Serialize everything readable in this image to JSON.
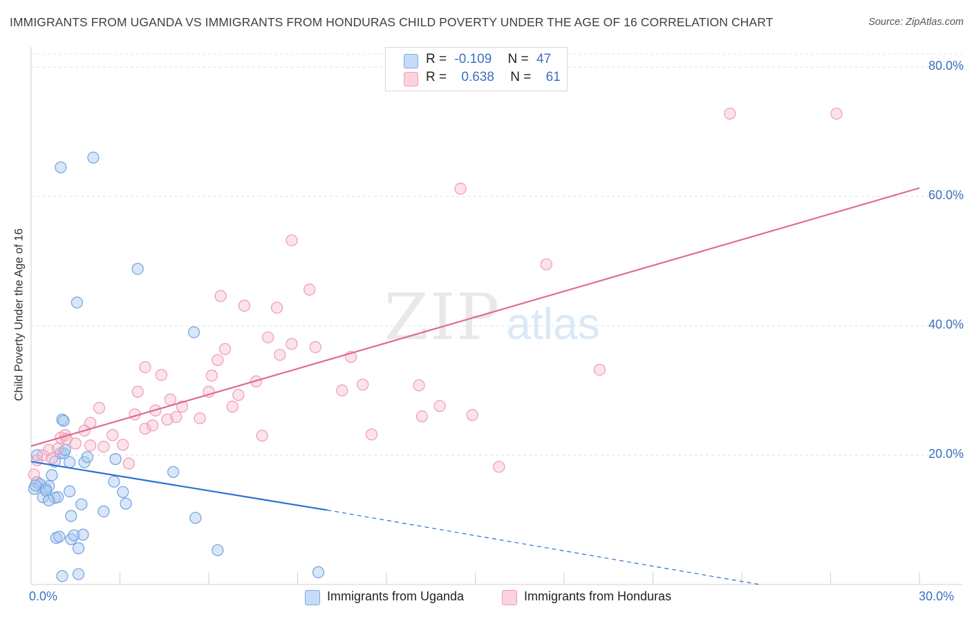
{
  "title": "IMMIGRANTS FROM UGANDA VS IMMIGRANTS FROM HONDURAS CHILD POVERTY UNDER THE AGE OF 16 CORRELATION CHART",
  "source": "Source: ZipAtlas.com",
  "watermark": {
    "zip": "ZIP",
    "atlas": "atlas"
  },
  "legend": {
    "rows": [
      {
        "r_label": "R =",
        "r_value": "-0.109",
        "n_label": "N =",
        "n_value": "47",
        "color": "#a8c8f0"
      },
      {
        "r_label": "R =",
        "r_value": "0.638",
        "n_label": "N =",
        "n_value": "61",
        "color": "#f7b8cb"
      }
    ]
  },
  "bottom_legend": [
    {
      "label": "Immigrants from Uganda",
      "color": "#a8c8f0"
    },
    {
      "label": "Immigrants from Honduras",
      "color": "#f7b8cb"
    }
  ],
  "chart_data": {
    "type": "scatter",
    "title": "IMMIGRANTS FROM UGANDA VS IMMIGRANTS FROM HONDURAS CHILD POVERTY UNDER THE AGE OF 16 CORRELATION CHART",
    "xlabel": "",
    "ylabel": "Child Poverty Under the Age of 16",
    "xlim": [
      0,
      30
    ],
    "ylim": [
      0,
      80
    ],
    "x_tick_labels": [
      "0.0%",
      "30.0%"
    ],
    "y_tick_values": [
      20,
      40,
      60,
      80
    ],
    "y_tick_labels": [
      "20.0%",
      "40.0%",
      "60.0%",
      "80.0%"
    ],
    "grid": true,
    "legend_position": "top-center",
    "series": [
      {
        "name": "Immigrants from Uganda",
        "color": "#7aaae6",
        "points": [
          [
            0.2,
            15.8
          ],
          [
            0.4,
            13.5
          ],
          [
            0.5,
            14.8
          ],
          [
            0.6,
            15.2
          ],
          [
            0.7,
            16.9
          ],
          [
            0.8,
            13.4
          ],
          [
            0.8,
            19.0
          ],
          [
            0.9,
            13.5
          ],
          [
            1.0,
            20.3
          ],
          [
            1.1,
            20.3
          ],
          [
            0.2,
            20.0
          ],
          [
            0.3,
            15.5
          ],
          [
            0.5,
            14.5
          ],
          [
            0.85,
            7.2
          ],
          [
            0.95,
            7.4
          ],
          [
            1.0,
            64.5
          ],
          [
            1.05,
            25.5
          ],
          [
            1.1,
            25.3
          ],
          [
            1.05,
            1.3
          ],
          [
            1.15,
            20.8
          ],
          [
            1.3,
            14.4
          ],
          [
            1.3,
            18.9
          ],
          [
            1.35,
            10.6
          ],
          [
            1.35,
            7.0
          ],
          [
            1.45,
            7.6
          ],
          [
            1.55,
            43.6
          ],
          [
            1.6,
            1.6
          ],
          [
            1.6,
            5.6
          ],
          [
            1.7,
            12.4
          ],
          [
            1.75,
            7.7
          ],
          [
            1.8,
            18.9
          ],
          [
            1.9,
            19.7
          ],
          [
            2.1,
            66.0
          ],
          [
            2.45,
            11.3
          ],
          [
            2.8,
            15.9
          ],
          [
            2.85,
            19.4
          ],
          [
            3.1,
            14.3
          ],
          [
            3.2,
            12.5
          ],
          [
            3.6,
            48.8
          ],
          [
            4.8,
            17.4
          ],
          [
            5.5,
            39.0
          ],
          [
            5.55,
            10.3
          ],
          [
            6.3,
            5.3
          ],
          [
            9.7,
            1.9
          ],
          [
            0.1,
            14.8
          ],
          [
            0.15,
            15.3
          ],
          [
            0.6,
            13.0
          ]
        ]
      },
      {
        "name": "Immigrants from Honduras",
        "color": "#f29ab5",
        "points": [
          [
            0.1,
            17.0
          ],
          [
            0.2,
            19.2
          ],
          [
            0.4,
            20.0
          ],
          [
            0.6,
            20.8
          ],
          [
            0.7,
            19.5
          ],
          [
            0.9,
            21.0
          ],
          [
            1.0,
            22.7
          ],
          [
            1.15,
            23.1
          ],
          [
            1.2,
            22.5
          ],
          [
            1.5,
            21.8
          ],
          [
            1.8,
            23.8
          ],
          [
            2.0,
            21.5
          ],
          [
            2.0,
            25.0
          ],
          [
            2.3,
            27.3
          ],
          [
            2.45,
            21.3
          ],
          [
            2.75,
            23.1
          ],
          [
            3.1,
            21.6
          ],
          [
            3.3,
            18.7
          ],
          [
            3.5,
            26.3
          ],
          [
            3.6,
            29.8
          ],
          [
            3.85,
            24.1
          ],
          [
            3.85,
            33.6
          ],
          [
            4.1,
            24.6
          ],
          [
            4.2,
            26.9
          ],
          [
            4.4,
            32.4
          ],
          [
            4.6,
            25.5
          ],
          [
            4.7,
            28.6
          ],
          [
            4.9,
            25.9
          ],
          [
            5.1,
            27.5
          ],
          [
            5.7,
            25.7
          ],
          [
            6.0,
            29.8
          ],
          [
            6.1,
            32.3
          ],
          [
            6.3,
            34.7
          ],
          [
            6.4,
            44.6
          ],
          [
            6.55,
            36.4
          ],
          [
            6.8,
            27.5
          ],
          [
            7.0,
            29.3
          ],
          [
            7.2,
            43.1
          ],
          [
            7.6,
            31.4
          ],
          [
            7.8,
            23.0
          ],
          [
            8.0,
            38.2
          ],
          [
            8.3,
            42.8
          ],
          [
            8.4,
            35.5
          ],
          [
            8.8,
            53.2
          ],
          [
            8.8,
            37.2
          ],
          [
            9.4,
            45.6
          ],
          [
            9.6,
            36.7
          ],
          [
            10.5,
            30.0
          ],
          [
            10.8,
            35.2
          ],
          [
            11.2,
            30.9
          ],
          [
            11.5,
            23.2
          ],
          [
            13.1,
            30.8
          ],
          [
            13.2,
            26.0
          ],
          [
            13.8,
            27.6
          ],
          [
            14.5,
            61.2
          ],
          [
            14.9,
            26.2
          ],
          [
            15.8,
            18.2
          ],
          [
            17.4,
            49.5
          ],
          [
            19.2,
            33.2
          ],
          [
            23.6,
            72.8
          ],
          [
            27.2,
            72.8
          ]
        ]
      }
    ],
    "trend_lines": [
      {
        "series": "Immigrants from Uganda",
        "x_start": 0,
        "y_start": 19.0,
        "x_solid_end": 10.0,
        "y_solid_end": 11.5,
        "x_end": 24.6,
        "y_end": 0,
        "color": "#2a6fd4"
      },
      {
        "series": "Immigrants from Honduras",
        "x_start": 0,
        "y_start": 21.4,
        "x_end": 30,
        "y_end": 61.3,
        "color": "#e06a94"
      }
    ]
  }
}
